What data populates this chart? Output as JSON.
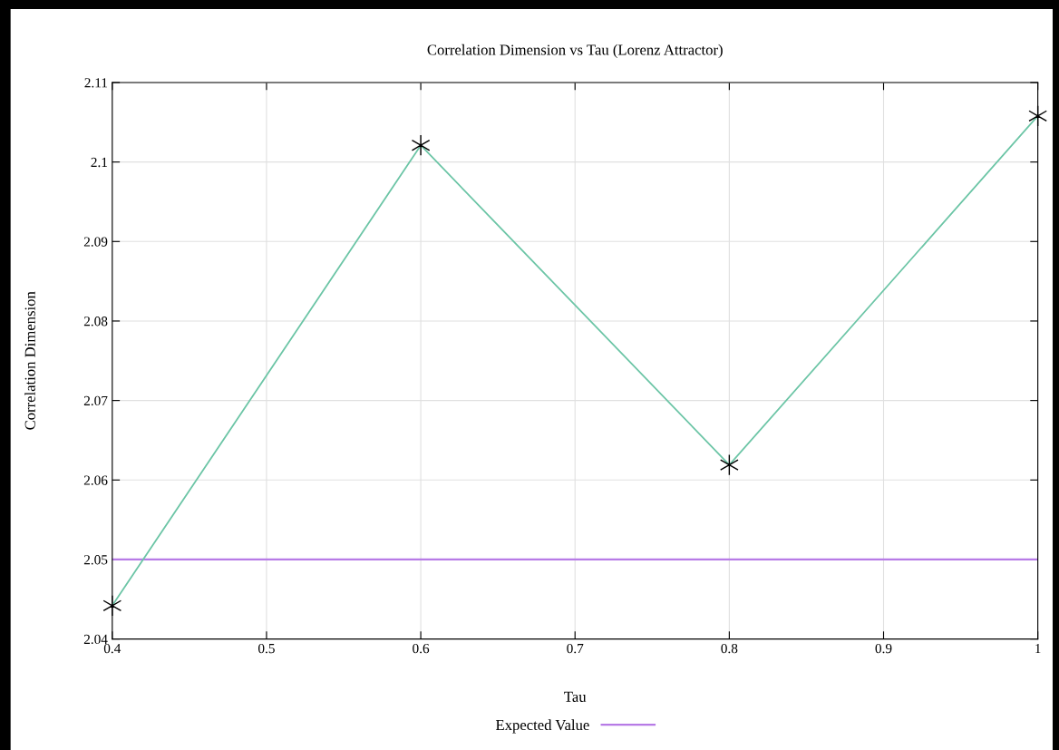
{
  "chart_data": {
    "type": "line",
    "title": "Correlation Dimension vs Tau (Lorenz Attractor)",
    "xlabel": "Tau",
    "ylabel": "Correlation Dimension",
    "x": [
      0.4,
      0.6,
      0.8,
      1.0
    ],
    "series": [
      {
        "color": "#6cc5a6",
        "values": [
          2.0442,
          2.1021,
          2.0619,
          2.1058
        ]
      }
    ],
    "marker": "cross",
    "line_style": "solid",
    "xlim": [
      0.4,
      1
    ],
    "xticks": [
      0.4,
      0.5,
      0.6,
      0.7,
      0.8,
      0.9,
      {
        "value": 1,
        "label": "1"
      }
    ],
    "ylim": [
      2.04,
      2.11
    ],
    "yticks": [
      2.04,
      2.05,
      2.06,
      2.07,
      2.08,
      2.09,
      {
        "value": 2.1,
        "label": "2.1"
      },
      2.11
    ],
    "ref_lines": [
      {
        "axis": "y",
        "value": 2.05,
        "label": "Expected Value",
        "color": "#b77be6",
        "line_style": "solid"
      }
    ],
    "grid": true,
    "legend": "bottom"
  }
}
